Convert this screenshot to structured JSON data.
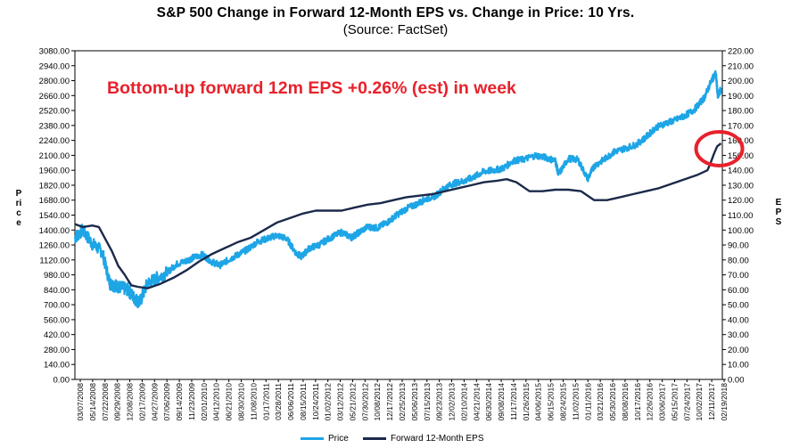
{
  "title": "S&P 500 Change in Forward 12-Month EPS vs. Change in Price: 10 Yrs.",
  "subtitle": "(Source: FactSet)",
  "annotation": "Bottom-up forward 12m EPS +0.26% (est) in week",
  "colors": {
    "price": "#1ea5e6",
    "eps": "#1b2a4a",
    "annotation": "#e8212b",
    "circle": "#e8212b"
  },
  "chart_data": {
    "type": "line",
    "title": "S&P 500 Change in Forward 12-Month EPS vs. Change in Price: 10 Yrs.",
    "subtitle": "(Source: FactSet)",
    "ylabel_left": "Price",
    "ylabel_right": "EPS",
    "ylim_left": [
      0,
      3080
    ],
    "ylim_right": [
      0,
      220
    ],
    "yticks_left": [
      "0.00",
      "140.00",
      "280.00",
      "420.00",
      "560.00",
      "700.00",
      "840.00",
      "980.00",
      "1120.00",
      "1260.00",
      "1400.00",
      "1540.00",
      "1680.00",
      "1820.00",
      "1960.00",
      "2100.00",
      "2240.00",
      "2380.00",
      "2520.00",
      "2660.00",
      "2800.00",
      "2940.00",
      "3080.00"
    ],
    "yticks_right": [
      "0.00",
      "10.00",
      "20.00",
      "30.00",
      "40.00",
      "50.00",
      "60.00",
      "70.00",
      "80.00",
      "90.00",
      "100.00",
      "110.00",
      "120.00",
      "130.00",
      "140.00",
      "150.00",
      "160.00",
      "170.00",
      "180.00",
      "190.00",
      "200.00",
      "210.00",
      "220.00"
    ],
    "x_tick_labels": [
      "03/07/2008",
      "05/14/2008",
      "07/22/2008",
      "09/29/2008",
      "12/08/2008",
      "02/17/2009",
      "04/27/2009",
      "07/06/2009",
      "09/14/2009",
      "11/23/2009",
      "02/01/2010",
      "04/12/2010",
      "06/21/2010",
      "08/30/2010",
      "11/08/2010",
      "01/17/2011",
      "03/28/2011",
      "06/06/2011",
      "08/15/2011",
      "10/24/2011",
      "01/02/2012",
      "03/12/2012",
      "05/21/2012",
      "07/30/2012",
      "10/08/2012",
      "12/17/2012",
      "02/25/2013",
      "05/06/2013",
      "07/15/2013",
      "09/23/2013",
      "12/02/2013",
      "02/10/2014",
      "04/21/2014",
      "06/30/2014",
      "09/08/2014",
      "11/17/2014",
      "01/26/2015",
      "04/06/2015",
      "06/15/2015",
      "08/24/2015",
      "11/02/2015",
      "01/11/2016",
      "03/21/2016",
      "05/30/2016",
      "08/08/2016",
      "10/17/2016",
      "12/26/2016",
      "03/06/2017",
      "05/15/2017",
      "07/24/2017",
      "10/02/2017",
      "12/11/2017",
      "02/19/2018"
    ],
    "x_range_approx": [
      "2008-03",
      "2018-02"
    ],
    "series": [
      {
        "name": "Price",
        "x": [
          2008.18,
          2008.3,
          2008.45,
          2008.6,
          2008.72,
          2008.8,
          2008.9,
          2009.0,
          2009.1,
          2009.18,
          2009.3,
          2009.45,
          2009.6,
          2009.75,
          2009.9,
          2010.0,
          2010.15,
          2010.3,
          2010.42,
          2010.55,
          2010.7,
          2010.85,
          2011.0,
          2011.15,
          2011.3,
          2011.45,
          2011.6,
          2011.68,
          2011.8,
          2011.95,
          2012.1,
          2012.3,
          2012.45,
          2012.55,
          2012.7,
          2012.85,
          2013.0,
          2013.15,
          2013.3,
          2013.45,
          2013.6,
          2013.75,
          2013.9,
          2014.05,
          2014.2,
          2014.35,
          2014.5,
          2014.65,
          2014.8,
          2014.95,
          2015.1,
          2015.3,
          2015.45,
          2015.6,
          2015.65,
          2015.8,
          2015.95,
          2016.1,
          2016.2,
          2016.35,
          2016.5,
          2016.65,
          2016.85,
          2017.0,
          2017.15,
          2017.3,
          2017.45,
          2017.6,
          2017.75,
          2017.9,
          2018.02,
          2018.08,
          2018.11,
          2018.16
        ],
        "values": [
          1330,
          1400,
          1270,
          1200,
          900,
          880,
          860,
          840,
          760,
          720,
          900,
          950,
          1000,
          1080,
          1110,
          1140,
          1170,
          1100,
          1070,
          1120,
          1170,
          1220,
          1290,
          1320,
          1350,
          1320,
          1180,
          1150,
          1230,
          1260,
          1320,
          1380,
          1330,
          1370,
          1430,
          1420,
          1470,
          1540,
          1600,
          1640,
          1690,
          1720,
          1800,
          1840,
          1860,
          1900,
          1950,
          1960,
          1980,
          2050,
          2060,
          2100,
          2080,
          2050,
          1920,
          2070,
          2060,
          1880,
          2000,
          2060,
          2130,
          2160,
          2200,
          2270,
          2360,
          2400,
          2430,
          2470,
          2530,
          2640,
          2810,
          2870,
          2650,
          2720
        ]
      },
      {
        "name": "Forward 12-Month EPS",
        "x": [
          2008.18,
          2008.3,
          2008.45,
          2008.55,
          2008.65,
          2008.75,
          2008.85,
          2008.95,
          2009.05,
          2009.15,
          2009.3,
          2009.5,
          2009.7,
          2009.9,
          2010.1,
          2010.3,
          2010.5,
          2010.7,
          2010.9,
          2011.1,
          2011.3,
          2011.5,
          2011.7,
          2011.9,
          2012.1,
          2012.3,
          2012.5,
          2012.7,
          2012.9,
          2013.1,
          2013.3,
          2013.5,
          2013.7,
          2013.9,
          2014.1,
          2014.3,
          2014.5,
          2014.7,
          2014.85,
          2015.0,
          2015.2,
          2015.4,
          2015.6,
          2015.8,
          2016.0,
          2016.2,
          2016.4,
          2016.6,
          2016.8,
          2017.0,
          2017.2,
          2017.4,
          2017.6,
          2017.8,
          2017.95,
          2018.0,
          2018.05,
          2018.1,
          2018.16
        ],
        "values": [
          104,
          102,
          103,
          102,
          94,
          86,
          76,
          70,
          63,
          62,
          61,
          64,
          68,
          73,
          79,
          84,
          88,
          92,
          95,
          100,
          105,
          108,
          111,
          113,
          113,
          113,
          115,
          117,
          118,
          120,
          122,
          123,
          124,
          126,
          128,
          130,
          132,
          133,
          134,
          132,
          126,
          126,
          127,
          127,
          126,
          120,
          120,
          122,
          124,
          126,
          128,
          131,
          134,
          137,
          140,
          145,
          151,
          156,
          158
        ]
      }
    ],
    "legend": [
      "Price",
      "Forward 12-Month EPS"
    ],
    "legend_position": "bottom",
    "grid": false
  }
}
